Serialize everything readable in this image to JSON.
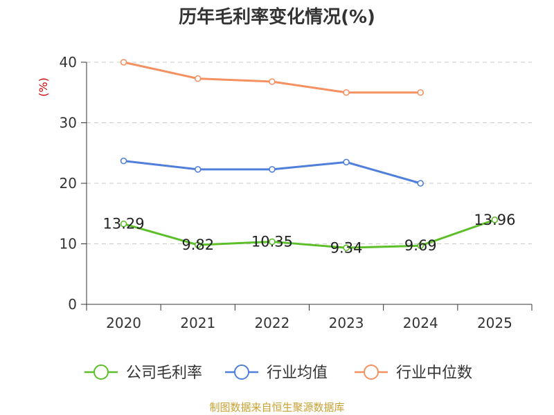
{
  "footer": "制图数据来自恒生聚源数据库",
  "chart_data": {
    "type": "line",
    "title": "历年毛利率变化情况(%)",
    "ylabel": "(%)",
    "xlabel": "",
    "ylim": [
      0,
      40
    ],
    "yticks": [
      0,
      10,
      20,
      30,
      40
    ],
    "categories": [
      "2020",
      "2021",
      "2022",
      "2023",
      "2024",
      "2025"
    ],
    "grid": true,
    "legend_position": "bottom",
    "series": [
      {
        "name": "公司毛利率",
        "color": "#5cbf2a",
        "show_labels": true,
        "values": [
          13.29,
          9.82,
          10.35,
          9.34,
          9.69,
          13.96
        ]
      },
      {
        "name": "行业均值",
        "color": "#4f7fdb",
        "show_labels": false,
        "values": [
          23.7,
          22.3,
          22.3,
          23.5,
          20.0,
          null
        ]
      },
      {
        "name": "行业中位数",
        "color": "#f59060",
        "show_labels": false,
        "values": [
          40.0,
          37.3,
          36.8,
          35.0,
          35.0,
          null
        ]
      }
    ]
  }
}
